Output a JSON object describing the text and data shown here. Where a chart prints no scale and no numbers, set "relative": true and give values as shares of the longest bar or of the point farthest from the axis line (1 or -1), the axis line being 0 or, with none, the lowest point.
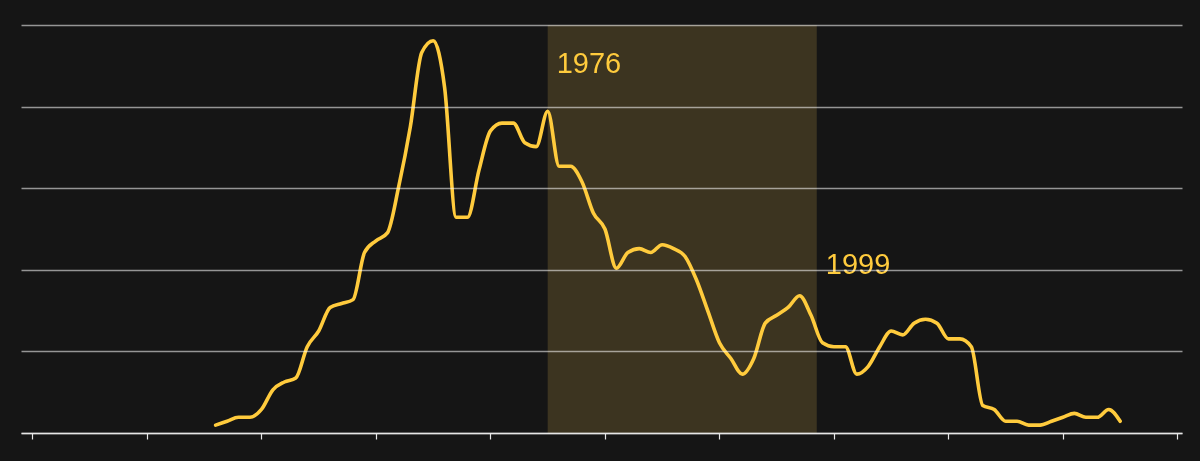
{
  "chart_data": {
    "type": "line",
    "relative": true,
    "color": "#ffcb3d",
    "categories": [
      null,
      null,
      null,
      null,
      null,
      null,
      null,
      null,
      null,
      null,
      null,
      null,
      null,
      null,
      null,
      null,
      null,
      null,
      null,
      null,
      null,
      null,
      null,
      null,
      null,
      null,
      null,
      null,
      null,
      null,
      null,
      null,
      null,
      null,
      null,
      null,
      null,
      null,
      null,
      null,
      null,
      null,
      null,
      null,
      null,
      null,
      null,
      null,
      null,
      null,
      null,
      null,
      null,
      null,
      null,
      null,
      null,
      null,
      null,
      null,
      null,
      null,
      null,
      null,
      null,
      null,
      null,
      null,
      null,
      null,
      null,
      null,
      null,
      null,
      null,
      null,
      null,
      null,
      null,
      null
    ],
    "values": [
      0.02,
      0.03,
      0.04,
      0.04,
      0.06,
      0.11,
      0.13,
      0.14,
      0.22,
      0.26,
      0.32,
      0.33,
      0.34,
      0.46,
      0.49,
      0.51,
      0.63,
      0.78,
      0.97,
      1.0,
      0.88,
      0.55,
      0.55,
      0.67,
      0.77,
      0.79,
      0.79,
      0.74,
      0.73,
      0.82,
      0.68,
      0.68,
      0.64,
      0.56,
      0.52,
      0.42,
      0.46,
      0.47,
      0.46,
      0.48,
      0.47,
      0.45,
      0.39,
      0.31,
      0.23,
      0.19,
      0.15,
      0.19,
      0.28,
      0.3,
      0.32,
      0.35,
      0.3,
      0.23,
      0.22,
      0.22,
      0.15,
      0.17,
      0.22,
      0.26,
      0.25,
      0.28,
      0.29,
      0.28,
      0.24,
      0.24,
      0.22,
      0.07,
      0.06,
      0.03,
      0.03,
      0.02,
      0.02,
      0.03,
      0.04,
      0.05,
      0.04,
      0.04,
      0.06,
      0.03
    ],
    "grid": "y",
    "annotations": [
      "1976",
      "1999"
    ]
  }
}
